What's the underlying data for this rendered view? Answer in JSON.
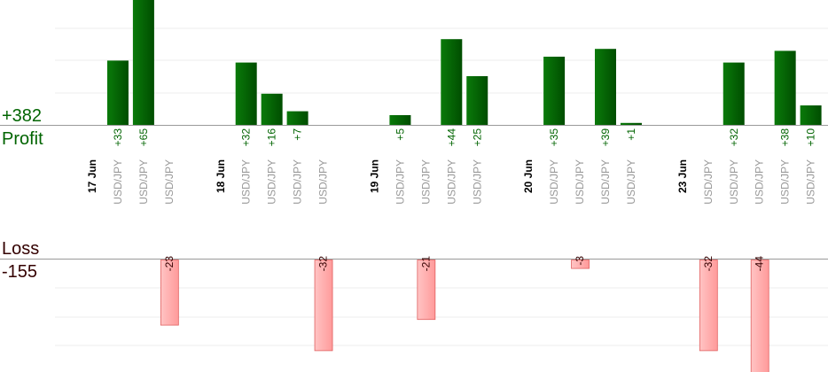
{
  "summary": {
    "profit_total": "+382",
    "profit_label": "Profit",
    "loss_label": "Loss",
    "loss_total": "-155"
  },
  "chart_data": {
    "type": "bar",
    "colors": {
      "profit": "#006400",
      "loss": "#ffb0b0",
      "profit_text": "#006400",
      "loss_text": "#330000",
      "symbol_text": "#999999"
    },
    "dates": [
      {
        "label": "17 Jun",
        "slot": 0
      },
      {
        "label": "18 Jun",
        "slot": 5
      },
      {
        "label": "19 Jun",
        "slot": 11
      },
      {
        "label": "20 Jun",
        "slot": 17
      },
      {
        "label": "23 Jun",
        "slot": 23
      }
    ],
    "trades": [
      {
        "slot": 1,
        "symbol": "USD/JPY",
        "value": 33,
        "label": "+33"
      },
      {
        "slot": 2,
        "symbol": "USD/JPY",
        "value": 65,
        "label": "+65"
      },
      {
        "slot": 3,
        "symbol": "USD/JPY",
        "value": -23,
        "label": "-23"
      },
      {
        "slot": 6,
        "symbol": "USD/JPY",
        "value": 32,
        "label": "+32"
      },
      {
        "slot": 7,
        "symbol": "USD/JPY",
        "value": 16,
        "label": "+16"
      },
      {
        "slot": 8,
        "symbol": "USD/JPY",
        "value": 7,
        "label": "+7"
      },
      {
        "slot": 9,
        "symbol": "USD/JPY",
        "value": -32,
        "label": "-32"
      },
      {
        "slot": 12,
        "symbol": "USD/JPY",
        "value": 5,
        "label": "+5"
      },
      {
        "slot": 13,
        "symbol": "USD/JPY",
        "value": -21,
        "label": "-21"
      },
      {
        "slot": 14,
        "symbol": "USD/JPY",
        "value": 44,
        "label": "+44"
      },
      {
        "slot": 15,
        "symbol": "USD/JPY",
        "value": 25,
        "label": "+25"
      },
      {
        "slot": 18,
        "symbol": "USD/JPY",
        "value": 35,
        "label": "+35"
      },
      {
        "slot": 19,
        "symbol": "USD/JPY",
        "value": -3,
        "label": "-3"
      },
      {
        "slot": 20,
        "symbol": "USD/JPY",
        "value": 39,
        "label": "+39"
      },
      {
        "slot": 21,
        "symbol": "USD/JPY",
        "value": 1,
        "label": "+1"
      },
      {
        "slot": 24,
        "symbol": "USD/JPY",
        "value": -32,
        "label": "-32"
      },
      {
        "slot": 25,
        "symbol": "USD/JPY",
        "value": 32,
        "label": "+32"
      },
      {
        "slot": 26,
        "symbol": "USD/JPY",
        "value": -44,
        "label": "-44"
      },
      {
        "slot": 27,
        "symbol": "USD/JPY",
        "value": 38,
        "label": "+38"
      },
      {
        "slot": 28,
        "symbol": "USD/JPY",
        "value": 10,
        "label": "+10"
      }
    ]
  }
}
